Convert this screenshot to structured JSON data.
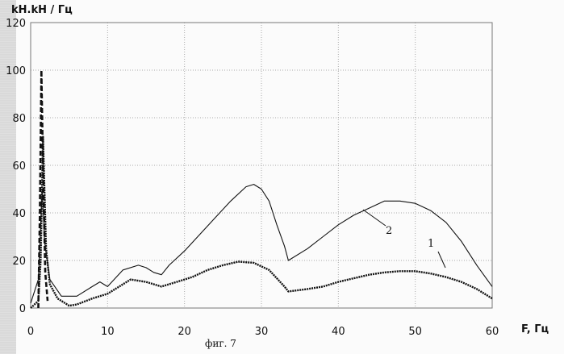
{
  "chart_data": {
    "type": "line",
    "title": "",
    "ylabel": "kH.kH / Гц",
    "xlabel": "F, Гц",
    "caption": "фиг. 7",
    "xlim": [
      0,
      60
    ],
    "ylim": [
      0,
      120
    ],
    "x_ticks": [
      "0",
      "10",
      "20",
      "30",
      "40",
      "50",
      "60"
    ],
    "y_ticks": [
      "0",
      "20",
      "40",
      "60",
      "80",
      "100",
      "120"
    ],
    "grid": true,
    "legend": "none",
    "series": [
      {
        "name": "2",
        "style": "thin",
        "color": "#111111",
        "points": [
          [
            0,
            2
          ],
          [
            1,
            12
          ],
          [
            1.5,
            50
          ],
          [
            1.8,
            28
          ],
          [
            2.5,
            12
          ],
          [
            4,
            5
          ],
          [
            6,
            5
          ],
          [
            8,
            9
          ],
          [
            9,
            11
          ],
          [
            10,
            9
          ],
          [
            12,
            16
          ],
          [
            14,
            18
          ],
          [
            15,
            17
          ],
          [
            16,
            15
          ],
          [
            17,
            14
          ],
          [
            18,
            18
          ],
          [
            20,
            24
          ],
          [
            22,
            31
          ],
          [
            24,
            38
          ],
          [
            26,
            45
          ],
          [
            28,
            51
          ],
          [
            29,
            52
          ],
          [
            30,
            50
          ],
          [
            31,
            45
          ],
          [
            32,
            35
          ],
          [
            33,
            26
          ],
          [
            33.5,
            20
          ],
          [
            36,
            25
          ],
          [
            38,
            30
          ],
          [
            40,
            35
          ],
          [
            42,
            39
          ],
          [
            44,
            42
          ],
          [
            46,
            45
          ],
          [
            48,
            45
          ],
          [
            50,
            44
          ],
          [
            52,
            41
          ],
          [
            54,
            36
          ],
          [
            56,
            28
          ],
          [
            58,
            18
          ],
          [
            60,
            9
          ]
        ]
      },
      {
        "name": "1",
        "style": "thick",
        "color": "#111111",
        "points": [
          [
            0,
            0
          ],
          [
            1,
            3
          ],
          [
            1.3,
            20
          ],
          [
            1.6,
            72
          ],
          [
            2,
            25
          ],
          [
            2.5,
            10
          ],
          [
            3.5,
            4
          ],
          [
            5,
            1
          ],
          [
            6,
            1.5
          ],
          [
            8,
            4
          ],
          [
            10,
            6
          ],
          [
            12,
            10
          ],
          [
            13,
            12
          ],
          [
            15,
            11
          ],
          [
            17,
            9
          ],
          [
            19,
            11
          ],
          [
            21,
            13
          ],
          [
            23,
            16
          ],
          [
            25,
            18
          ],
          [
            27,
            19.5
          ],
          [
            29,
            19
          ],
          [
            31,
            16
          ],
          [
            33,
            9
          ],
          [
            33.5,
            7
          ],
          [
            36,
            8
          ],
          [
            38,
            9
          ],
          [
            40,
            11
          ],
          [
            42,
            12.5
          ],
          [
            44,
            14
          ],
          [
            46,
            15
          ],
          [
            48,
            15.5
          ],
          [
            50,
            15.5
          ],
          [
            52,
            14.5
          ],
          [
            54,
            13
          ],
          [
            56,
            11
          ],
          [
            58,
            8
          ],
          [
            60,
            4
          ]
        ]
      },
      {
        "name": "",
        "style": "dashed",
        "color": "#111111",
        "points": [
          [
            1.0,
            0
          ],
          [
            1.2,
            40
          ],
          [
            1.4,
            100
          ],
          [
            1.6,
            60
          ],
          [
            1.9,
            15
          ],
          [
            2.2,
            3
          ]
        ]
      }
    ]
  }
}
